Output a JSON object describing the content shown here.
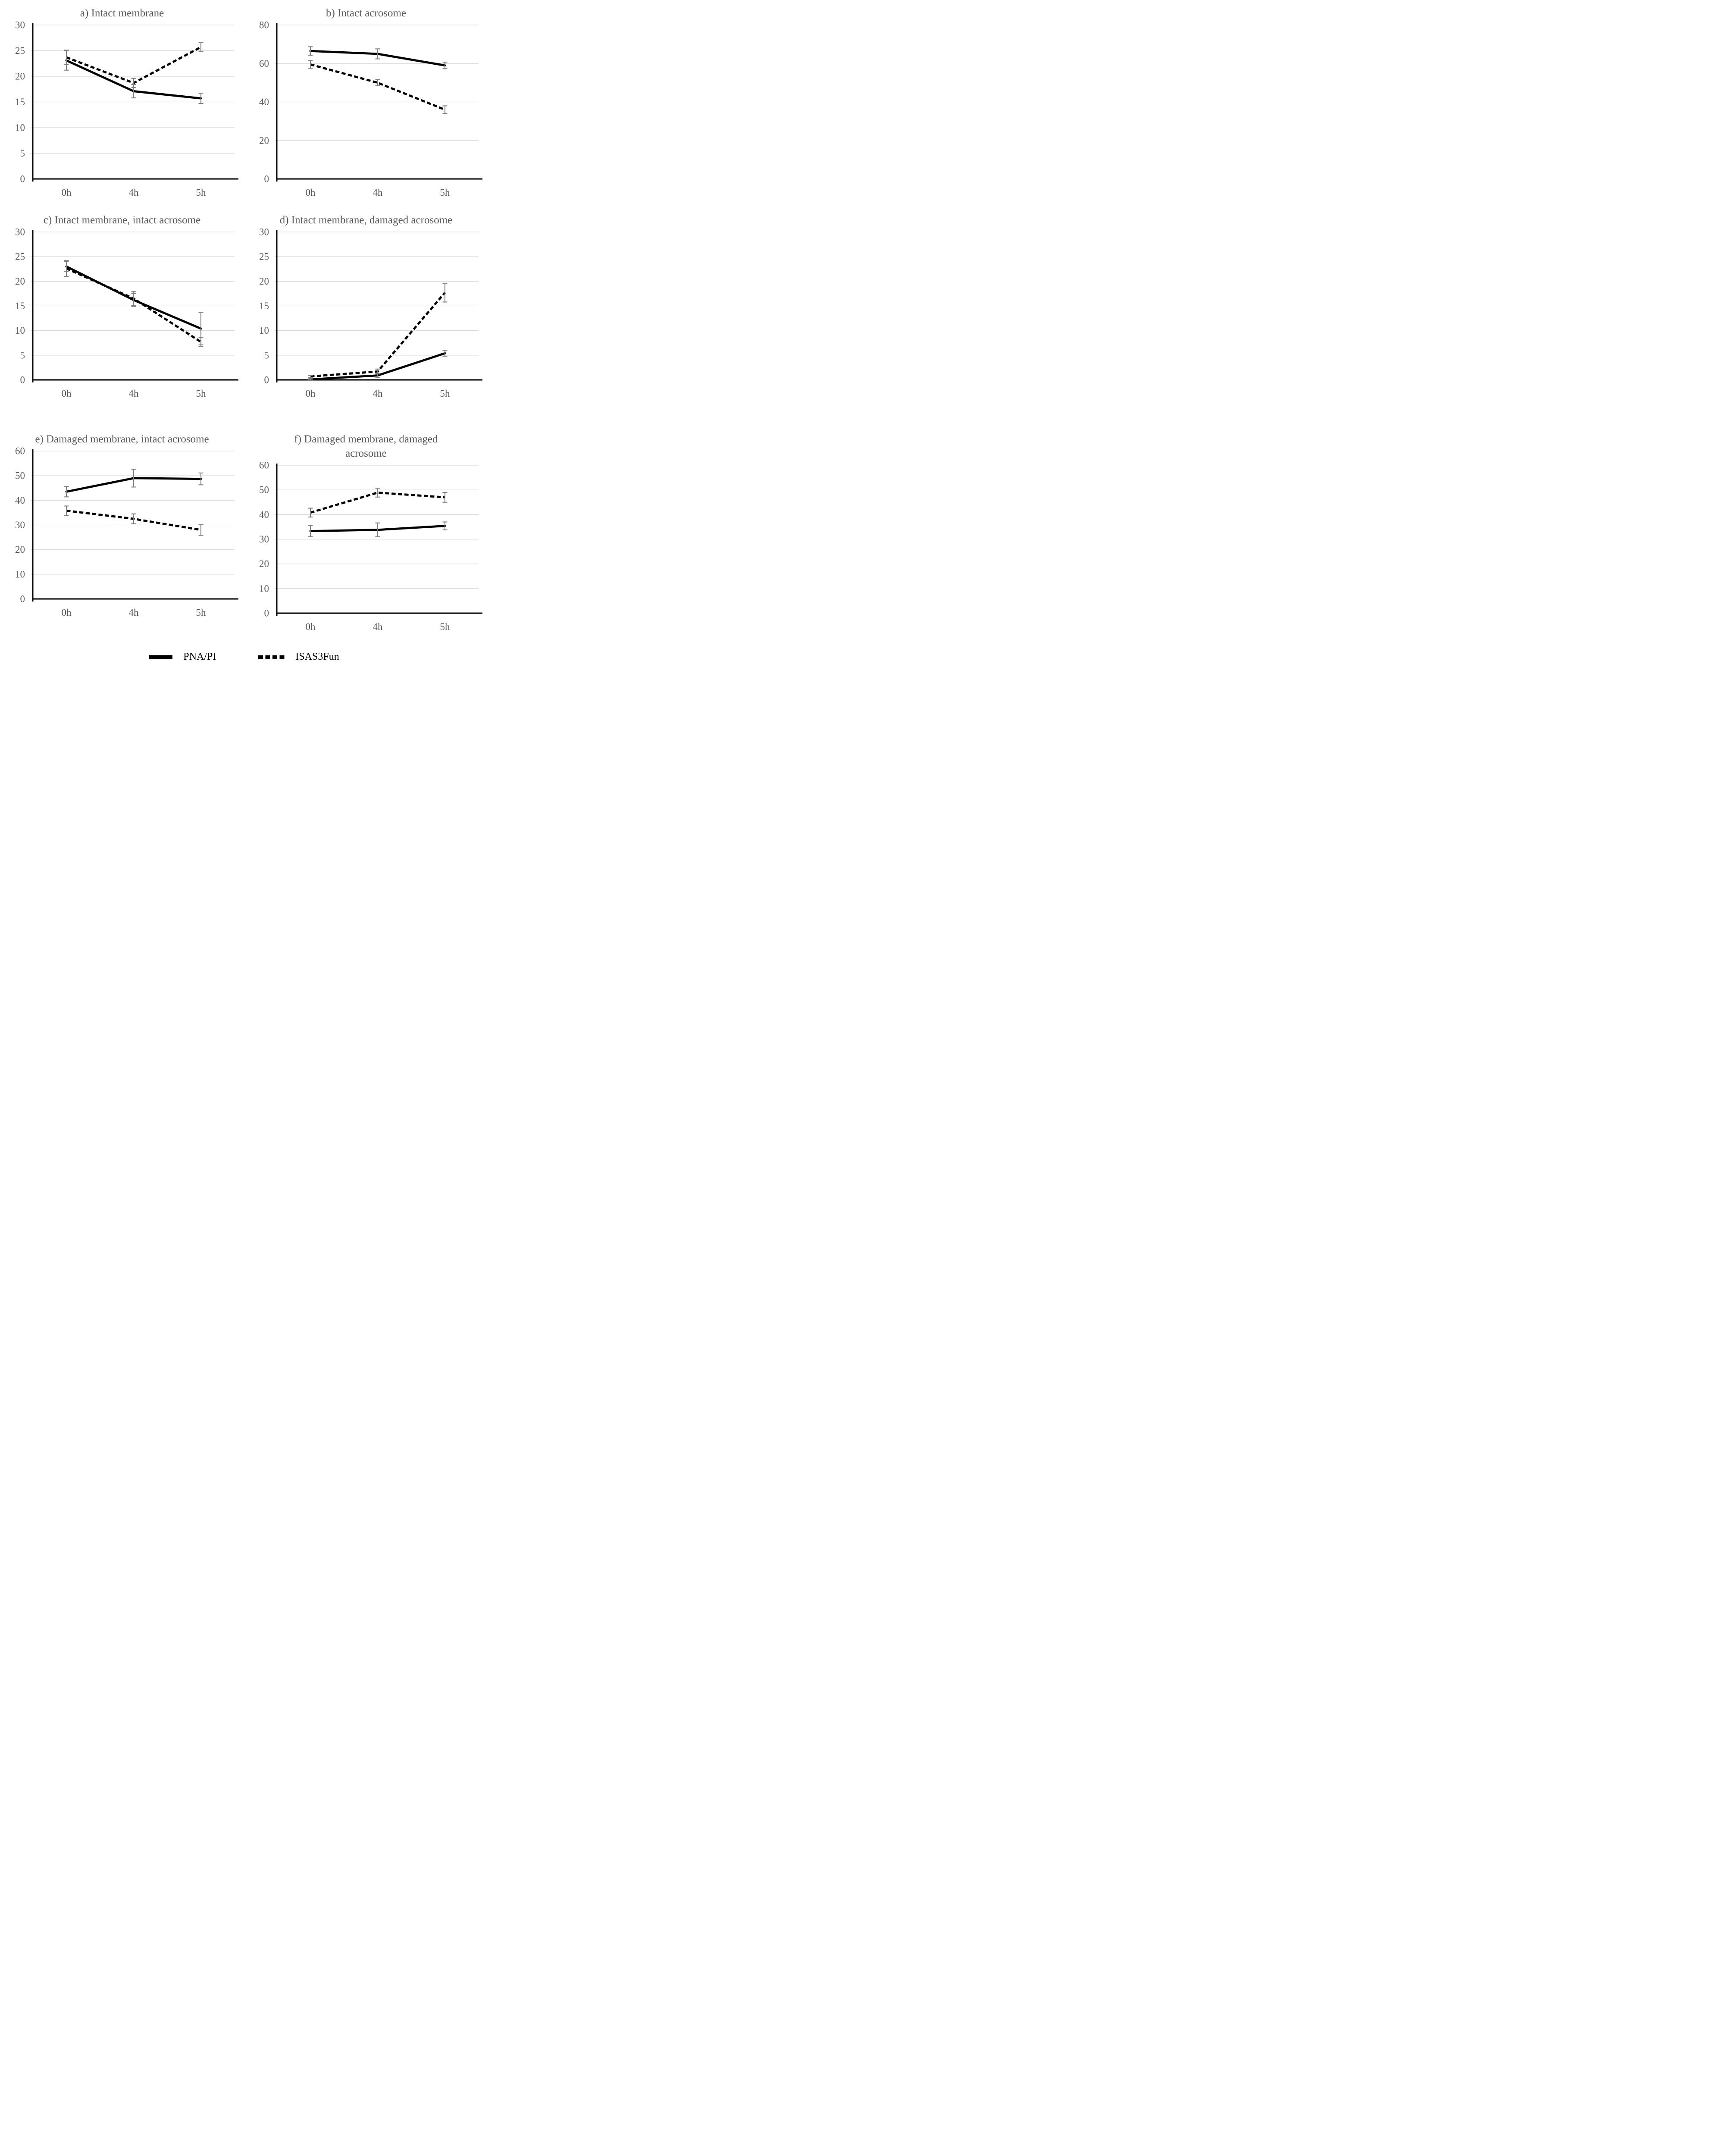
{
  "figure": {
    "background": "#ffffff"
  },
  "colors": {
    "line": "#000000",
    "axis": "#000000",
    "gridline": "#d9d9d9",
    "error_bar": "#7f7f7f",
    "title_text": "#595959",
    "tick_text": "#595959",
    "legend_text": "#000000"
  },
  "legend": {
    "items": [
      {
        "label": "PNA/PI",
        "style": "solid"
      },
      {
        "label": "ISAS3Fun",
        "style": "dashed"
      }
    ]
  },
  "chart_data": [
    {
      "type": "line",
      "panel": "a",
      "title": "a) Intact membrane",
      "categories": [
        "0h",
        "4h",
        "5h"
      ],
      "ylim": [
        0,
        30
      ],
      "yticks": [
        0,
        5,
        10,
        15,
        20,
        25,
        30
      ],
      "grid": true,
      "series": [
        {
          "name": "PNA/PI",
          "style": "solid",
          "values": [
            23.1,
            17.1,
            15.7
          ],
          "errors": [
            1.9,
            1.3,
            1.0
          ]
        },
        {
          "name": "ISAS3Fun",
          "style": "dashed",
          "values": [
            23.7,
            18.7,
            25.7
          ],
          "errors": [
            1.4,
            0.9,
            0.9
          ]
        }
      ]
    },
    {
      "type": "line",
      "panel": "b",
      "title": "b) Intact acrosome",
      "categories": [
        "0h",
        "4h",
        "5h"
      ],
      "ylim": [
        0,
        80
      ],
      "yticks": [
        0,
        20,
        40,
        60,
        80
      ],
      "grid": true,
      "series": [
        {
          "name": "PNA/PI",
          "style": "solid",
          "values": [
            66.5,
            65.0,
            59.0
          ],
          "errors": [
            2.2,
            2.6,
            1.7
          ]
        },
        {
          "name": "ISAS3Fun",
          "style": "dashed",
          "values": [
            59.5,
            50.0,
            36.0
          ],
          "errors": [
            2.0,
            1.6,
            2.0
          ]
        }
      ]
    },
    {
      "type": "line",
      "panel": "c",
      "title": "c) Intact membrane, intact acrosome",
      "categories": [
        "0h",
        "4h",
        "5h"
      ],
      "ylim": [
        0,
        30
      ],
      "yticks": [
        0,
        5,
        10,
        15,
        20,
        25,
        30
      ],
      "grid": true,
      "series": [
        {
          "name": "PNA/PI",
          "style": "solid",
          "values": [
            23.0,
            16.2,
            10.4
          ],
          "errors": [
            1.0,
            1.3,
            3.3
          ]
        },
        {
          "name": "ISAS3Fun",
          "style": "dashed",
          "values": [
            22.6,
            16.5,
            7.7
          ],
          "errors": [
            1.6,
            1.4,
            0.9
          ]
        }
      ]
    },
    {
      "type": "line",
      "panel": "d",
      "title": "d) Intact membrane, damaged acrosome",
      "categories": [
        "0h",
        "4h",
        "5h"
      ],
      "ylim": [
        0,
        30
      ],
      "yticks": [
        0,
        5,
        10,
        15,
        20,
        25,
        30
      ],
      "grid": true,
      "series": [
        {
          "name": "PNA/PI",
          "style": "solid",
          "values": [
            0.1,
            0.9,
            5.4
          ],
          "errors": [
            0.2,
            0.4,
            0.6
          ]
        },
        {
          "name": "ISAS3Fun",
          "style": "dashed",
          "values": [
            0.7,
            1.7,
            17.7
          ],
          "errors": [
            0.2,
            0.5,
            1.9
          ]
        }
      ]
    },
    {
      "type": "line",
      "panel": "e",
      "title": "e) Damaged membrane, intact acrosome",
      "categories": [
        "0h",
        "4h",
        "5h"
      ],
      "ylim": [
        0,
        60
      ],
      "yticks": [
        0,
        10,
        20,
        30,
        40,
        50,
        60
      ],
      "grid": true,
      "series": [
        {
          "name": "PNA/PI",
          "style": "solid",
          "values": [
            43.5,
            49.0,
            48.7
          ],
          "errors": [
            2.1,
            3.6,
            2.4
          ]
        },
        {
          "name": "ISAS3Fun",
          "style": "dashed",
          "values": [
            35.8,
            32.5,
            28.0
          ],
          "errors": [
            1.9,
            2.0,
            2.2
          ]
        }
      ]
    },
    {
      "type": "line",
      "panel": "f",
      "title": "f) Damaged membrane, damaged acrosome",
      "categories": [
        "0h",
        "4h",
        "5h"
      ],
      "ylim": [
        0,
        60
      ],
      "yticks": [
        0,
        10,
        20,
        30,
        40,
        50,
        60
      ],
      "grid": true,
      "series": [
        {
          "name": "PNA/PI",
          "style": "solid",
          "values": [
            33.3,
            33.8,
            35.4
          ],
          "errors": [
            2.3,
            2.8,
            1.6
          ]
        },
        {
          "name": "ISAS3Fun",
          "style": "dashed",
          "values": [
            40.8,
            48.9,
            47.0
          ],
          "errors": [
            1.8,
            1.8,
            2.0
          ]
        }
      ]
    }
  ]
}
